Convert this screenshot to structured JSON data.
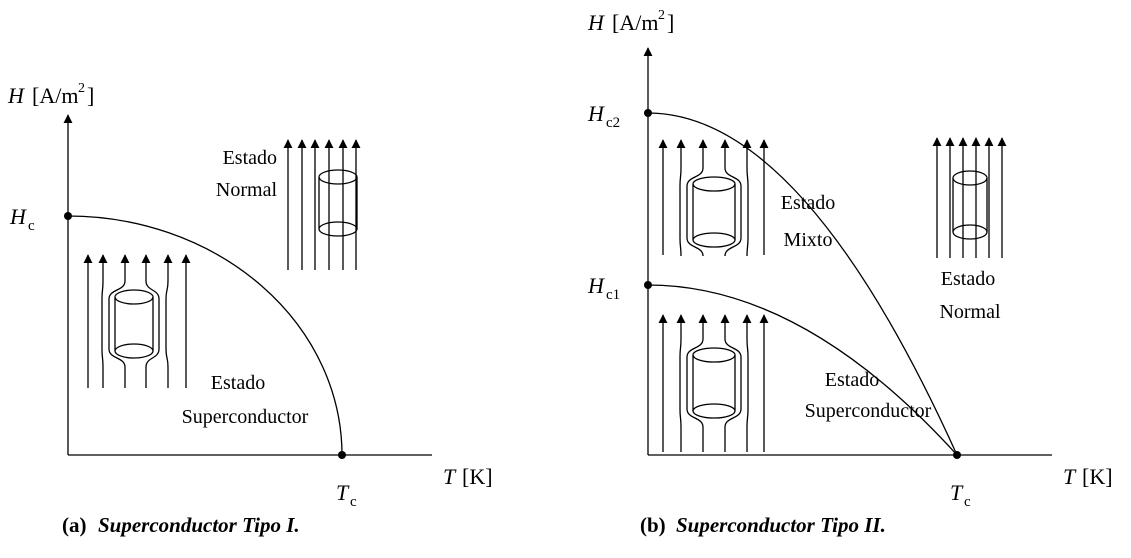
{
  "panels": [
    {
      "caption": {
        "label": "(a)",
        "title": "Superconductor Tipo I."
      },
      "y_axis": {
        "symbol": "H",
        "unit_open": "[A/m",
        "exponent": "2",
        "unit_close": "]"
      },
      "x_axis": {
        "symbol": "T",
        "unit": "[K]"
      },
      "critical_fields": [
        {
          "symbol": "H",
          "subscript": "c"
        }
      ],
      "critical_temperature": {
        "symbol": "T",
        "subscript": "c"
      },
      "regions": [
        {
          "lines": [
            "Estado",
            "Normal"
          ]
        },
        {
          "lines": [
            "Estado",
            "Superconductor"
          ]
        }
      ]
    },
    {
      "caption": {
        "label": "(b)",
        "title": "Superconductor Tipo II."
      },
      "y_axis": {
        "symbol": "H",
        "unit_open": "[A/m",
        "exponent": "2",
        "unit_close": "]"
      },
      "x_axis": {
        "symbol": "T",
        "unit": "[K]"
      },
      "critical_fields": [
        {
          "symbol": "H",
          "subscript": "c2"
        },
        {
          "symbol": "H",
          "subscript": "c1"
        }
      ],
      "critical_temperature": {
        "symbol": "T",
        "subscript": "c"
      },
      "regions": [
        {
          "lines": [
            "Estado",
            "Mixto"
          ]
        },
        {
          "lines": [
            "Estado",
            "Normal"
          ]
        },
        {
          "lines": [
            "Estado",
            "Superconductor"
          ]
        }
      ]
    }
  ]
}
